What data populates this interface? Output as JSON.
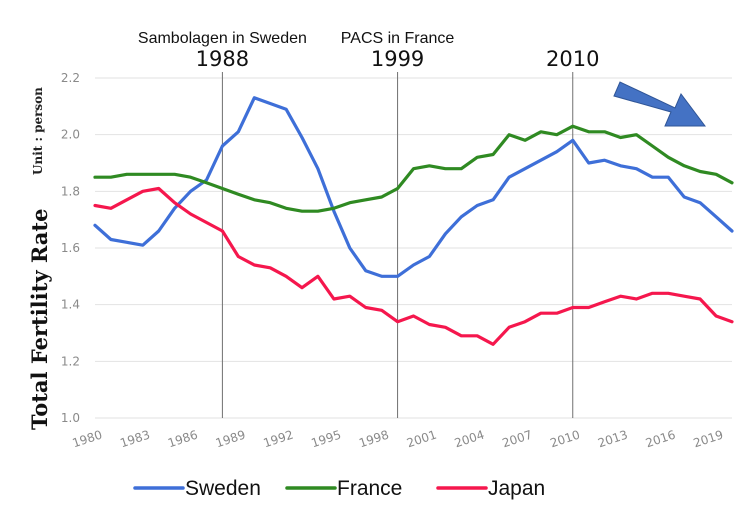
{
  "chart_data": {
    "type": "line",
    "ylabel": "Total Fertility Rate",
    "yunit": "Unit : person",
    "ylim": [
      1.0,
      2.2
    ],
    "yticks": [
      "1.0",
      "1.2",
      "1.4",
      "1.6",
      "1.8",
      "2.0",
      "2.2"
    ],
    "xlim": [
      1980,
      2020
    ],
    "xticks": [
      "1980",
      "1983",
      "1986",
      "1989",
      "1992",
      "1995",
      "1998",
      "2001",
      "2004",
      "2007",
      "2010",
      "2013",
      "2016",
      "2019"
    ],
    "grid": "horizontal",
    "legend_position": "bottom",
    "annotations": [
      {
        "top_text": "Sambolagen in Sweden",
        "year_label": "1988",
        "x": 1988
      },
      {
        "top_text": "PACS in France",
        "year_label": "1999",
        "x": 1999
      },
      {
        "top_text": "",
        "year_label": "2010",
        "x": 2010
      }
    ],
    "arrow_color": "#4472c4",
    "x": [
      1980,
      1981,
      1982,
      1983,
      1984,
      1985,
      1986,
      1987,
      1988,
      1989,
      1990,
      1991,
      1992,
      1993,
      1994,
      1995,
      1996,
      1997,
      1998,
      1999,
      2000,
      2001,
      2002,
      2003,
      2004,
      2005,
      2006,
      2007,
      2008,
      2009,
      2010,
      2011,
      2012,
      2013,
      2014,
      2015,
      2016,
      2017,
      2018,
      2019,
      2020
    ],
    "series": [
      {
        "name": "Sweden",
        "color": "#3e6fd8",
        "values": [
          1.68,
          1.63,
          1.62,
          1.61,
          1.66,
          1.74,
          1.8,
          1.84,
          1.96,
          2.01,
          2.13,
          2.11,
          2.09,
          1.99,
          1.88,
          1.73,
          1.6,
          1.52,
          1.5,
          1.5,
          1.54,
          1.57,
          1.65,
          1.71,
          1.75,
          1.77,
          1.85,
          1.88,
          1.91,
          1.94,
          1.98,
          1.9,
          1.91,
          1.89,
          1.88,
          1.85,
          1.85,
          1.78,
          1.76,
          1.71,
          1.66
        ]
      },
      {
        "name": "France",
        "color": "#2f8a22",
        "values": [
          1.85,
          1.85,
          1.86,
          1.86,
          1.86,
          1.86,
          1.85,
          1.83,
          1.81,
          1.79,
          1.77,
          1.76,
          1.74,
          1.73,
          1.73,
          1.74,
          1.76,
          1.77,
          1.78,
          1.81,
          1.88,
          1.89,
          1.88,
          1.88,
          1.92,
          1.93,
          2.0,
          1.98,
          2.01,
          2.0,
          2.03,
          2.01,
          2.01,
          1.99,
          2.0,
          1.96,
          1.92,
          1.89,
          1.87,
          1.86,
          1.83
        ]
      },
      {
        "name": "Japan",
        "color": "#f5174d",
        "values": [
          1.75,
          1.74,
          1.77,
          1.8,
          1.81,
          1.76,
          1.72,
          1.69,
          1.66,
          1.57,
          1.54,
          1.53,
          1.5,
          1.46,
          1.5,
          1.42,
          1.43,
          1.39,
          1.38,
          1.34,
          1.36,
          1.33,
          1.32,
          1.29,
          1.29,
          1.26,
          1.32,
          1.34,
          1.37,
          1.37,
          1.39,
          1.39,
          1.41,
          1.43,
          1.42,
          1.44,
          1.44,
          1.43,
          1.42,
          1.36,
          1.34
        ]
      }
    ]
  }
}
